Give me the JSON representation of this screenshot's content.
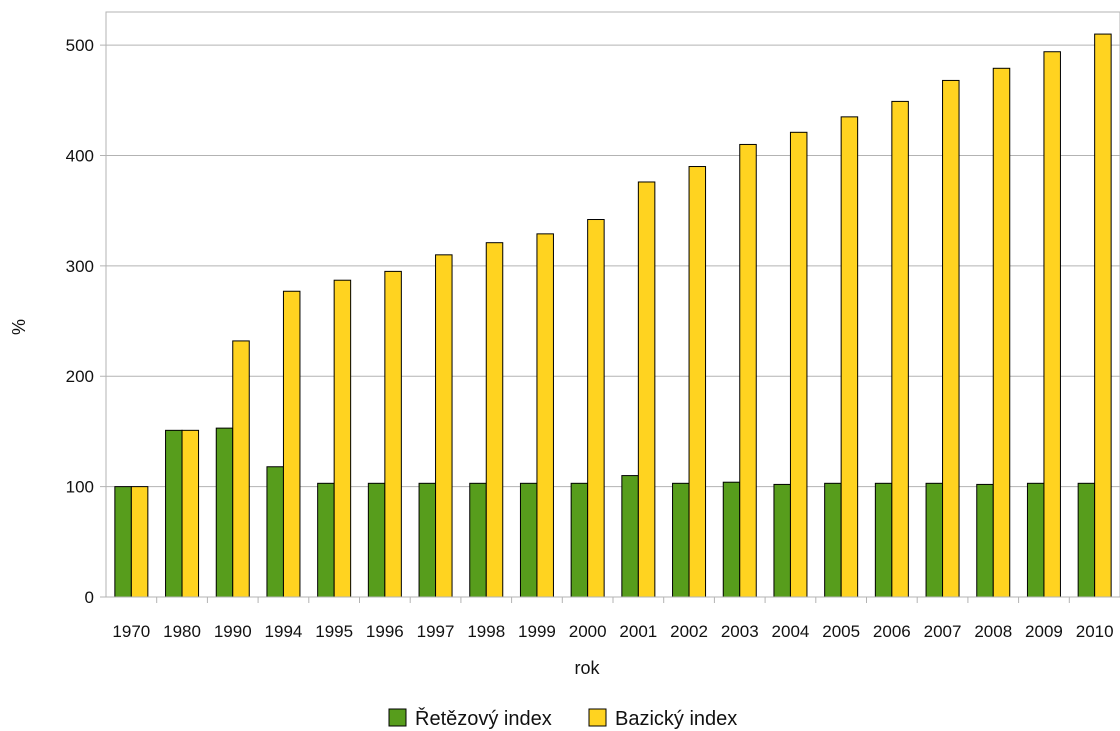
{
  "chart_data": {
    "type": "bar",
    "xlabel": "rok",
    "ylabel": "%",
    "ylim": [
      0,
      530
    ],
    "yticks": [
      0,
      100,
      200,
      300,
      400,
      500
    ],
    "grid": true,
    "legend_position": "bottom",
    "categories": [
      "1970",
      "1980",
      "1990",
      "1994",
      "1995",
      "1996",
      "1997",
      "1998",
      "1999",
      "2000",
      "2001",
      "2002",
      "2003",
      "2004",
      "2005",
      "2006",
      "2007",
      "2008",
      "2009",
      "2010"
    ],
    "series": [
      {
        "name": "Řetězový index",
        "color": "#579d1c",
        "values": [
          100,
          151,
          153,
          118,
          103,
          103,
          103,
          103,
          103,
          103,
          110,
          103,
          104,
          102,
          103,
          103,
          103,
          102,
          103,
          103
        ]
      },
      {
        "name": "Bazický index",
        "color": "#ffd320",
        "values": [
          100,
          151,
          232,
          277,
          287,
          295,
          310,
          321,
          329,
          342,
          376,
          390,
          410,
          421,
          435,
          449,
          468,
          479,
          494,
          510
        ]
      }
    ]
  }
}
